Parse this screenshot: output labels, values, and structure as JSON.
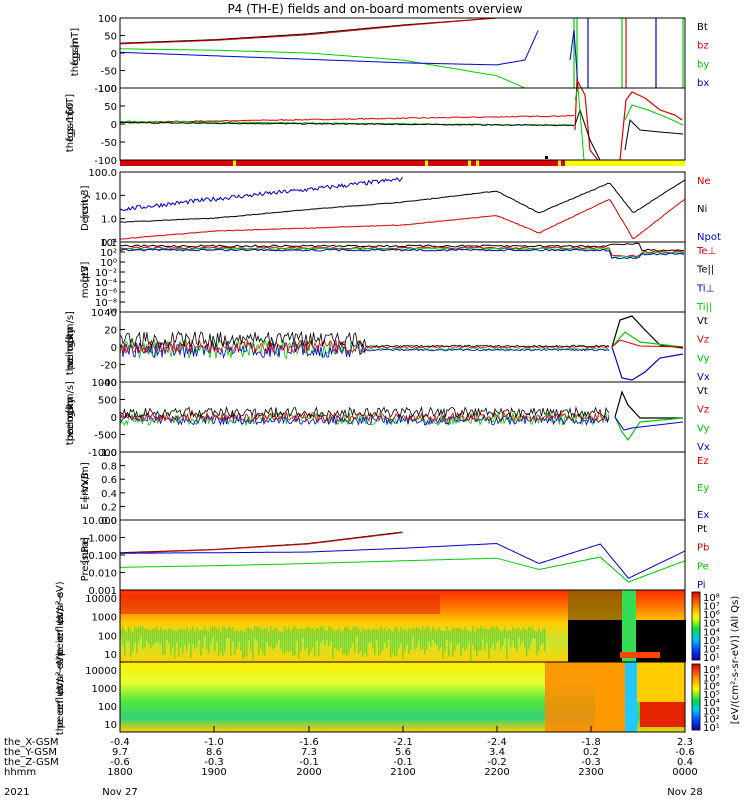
{
  "title": "P4 (TH-E) fields and on-board moments overview",
  "colors": {
    "black": "#000000",
    "red": "#dd0000",
    "green": "#00cc00",
    "blue": "#0000cc",
    "yellow": "#ffff00"
  },
  "panels": [
    {
      "ylabel": [
        "the",
        "fgs",
        "gsm",
        "[nT]"
      ],
      "ticks": [
        "100",
        "50",
        "0",
        "-50",
        "-100"
      ],
      "legend": [
        {
          "t": "Bt",
          "c": "black"
        },
        {
          "t": "bz",
          "c": "red"
        },
        {
          "t": "by",
          "c": "green"
        },
        {
          "t": "bx",
          "c": "blue"
        }
      ]
    },
    {
      "ylabel": [
        "the",
        "fgs",
        "gsm",
        "-160",
        "[nT]"
      ],
      "ticks": [
        "100",
        "50",
        "0",
        "-50",
        "-100"
      ],
      "legend": []
    },
    {
      "ylabel": [
        "Density",
        "[cm-3]"
      ],
      "ticks": [
        "100.0",
        "10.0",
        "1.0",
        "0.1"
      ],
      "legend": [
        {
          "t": "Ne",
          "c": "red"
        },
        {
          "t": "Ni",
          "c": "black"
        },
        {
          "t": "Npot",
          "c": "blue"
        }
      ]
    },
    {
      "ylabel": [
        "moqt3",
        "[eV]"
      ],
      "ticks": [
        "10⁴",
        "10²",
        "10⁰",
        "10⁻²",
        "10⁻⁴",
        "10⁻⁶",
        "10⁻⁸",
        "10⁻¹⁰"
      ],
      "legend": [
        {
          "t": "Te⊥",
          "c": "red"
        },
        {
          "t": "Te||",
          "c": "black"
        },
        {
          "t": "Ti⊥",
          "c": "blue"
        },
        {
          "t": "Ti||",
          "c": "green"
        }
      ]
    },
    {
      "ylabel": [
        "the",
        "peim",
        "velocity",
        "gsm",
        "[km/s]"
      ],
      "ticks": [
        "40",
        "20",
        "0",
        "-20",
        "-40"
      ],
      "legend": [
        {
          "t": "Vt",
          "c": "black"
        },
        {
          "t": "Vz",
          "c": "red"
        },
        {
          "t": "Vy",
          "c": "green"
        },
        {
          "t": "Vx",
          "c": "blue"
        }
      ]
    },
    {
      "ylabel": [
        "the",
        "peem",
        "velocity",
        "gsm",
        "[km/s]"
      ],
      "ticks": [
        "1000",
        "500",
        "0",
        "-500",
        "-1000"
      ],
      "legend": [
        {
          "t": "Vt",
          "c": "black"
        },
        {
          "t": "Vz",
          "c": "red"
        },
        {
          "t": "Vy",
          "c": "green"
        },
        {
          "t": "Vx",
          "c": "blue"
        }
      ]
    },
    {
      "ylabel": [
        "E=-VxB",
        "[mV/m]"
      ],
      "ticks": [
        "1.0",
        "0.8",
        "0.6",
        "0.4",
        "0.2",
        "0.0"
      ],
      "legend": [
        {
          "t": "Ez",
          "c": "red"
        },
        {
          "t": "Ey",
          "c": "green"
        },
        {
          "t": "Ex",
          "c": "blue"
        }
      ]
    },
    {
      "ylabel": [
        "Pressure",
        "[nPa]"
      ],
      "ticks": [
        "10.000",
        "1.000",
        "0.100",
        "0.010",
        "0.001"
      ],
      "legend": [
        {
          "t": "Pt",
          "c": "black"
        },
        {
          "t": "Pb",
          "c": "red"
        },
        {
          "t": "Pe",
          "c": "green"
        },
        {
          "t": "Pi",
          "c": "blue"
        }
      ]
    },
    {
      "ylabel": [
        "the",
        "peir",
        "en",
        "eflux",
        "eV/",
        "(cm²-s-",
        "sr-eV)"
      ],
      "ticks": [
        "10000",
        "1000",
        "100",
        "10"
      ],
      "legend": []
    },
    {
      "ylabel": [
        "the",
        "peer",
        "en",
        "eflux",
        "eV/",
        "(cm²-s-",
        "sr-eV)"
      ],
      "ticks": [
        "10000",
        "1000",
        "100",
        "10"
      ],
      "legend": []
    }
  ],
  "colorbar": {
    "ticks": [
      "10⁸",
      "10⁷",
      "10⁶",
      "10⁵",
      "10⁴",
      "10³",
      "10²",
      "10¹"
    ],
    "label": "[eV/(cm²-s-sr-eV)] (All Qs)"
  },
  "footer": {
    "rows": [
      {
        "label": "the_X-GSM",
        "values": [
          "-0.4",
          "-1.0",
          "-1.6",
          "-2.1",
          "-2.4",
          "-1.8",
          "2.3"
        ]
      },
      {
        "label": "the_Y-GSM",
        "values": [
          "9.7",
          "8.6",
          "7.3",
          "5.6",
          "3.4",
          "0.2",
          "-0.6"
        ]
      },
      {
        "label": "the_Z-GSM",
        "values": [
          "-0.6",
          "-0.3",
          "-0.1",
          "-0.1",
          "-0.2",
          "-0.3",
          "0.4"
        ]
      },
      {
        "label": "hhmm",
        "values": [
          "1800",
          "1900",
          "2000",
          "2100",
          "2200",
          "2300",
          "0000"
        ]
      }
    ],
    "dates": {
      "year": "2021",
      "start": "Nov 27",
      "end": "Nov 28"
    }
  },
  "chart_data": {
    "type": "line",
    "title": "P4 (TH-E) fields and on-board moments overview",
    "x_ticks": [
      "1800",
      "1900",
      "2000",
      "2100",
      "2200",
      "2300",
      "0000"
    ],
    "panels": [
      {
        "name": "the fgs gsm [nT]",
        "ylim": [
          -100,
          100
        ],
        "series": [
          {
            "name": "Bt",
            "x": [
              1800,
              1900,
              2000,
              2100,
              2200,
              2230,
              2250
            ],
            "values": [
              28,
              38,
              55,
              80,
              100,
              100,
              100
            ]
          },
          {
            "name": "bz",
            "x": [
              1800,
              1900,
              2000,
              2100,
              2200,
              2230,
              2250
            ],
            "values": [
              26,
              36,
              52,
              78,
              100,
              100,
              100
            ]
          },
          {
            "name": "by",
            "x": [
              1800,
              1900,
              2000,
              2100,
              2200,
              2230,
              2250
            ],
            "values": [
              12,
              8,
              0,
              -20,
              -65,
              -100,
              -100
            ]
          },
          {
            "name": "bx",
            "x": [
              1800,
              1900,
              2000,
              2100,
              2200,
              2230,
              2250
            ],
            "values": [
              2,
              -8,
              -18,
              -28,
              -34,
              -20,
              100
            ]
          }
        ]
      },
      {
        "name": "Density [cm-3]",
        "ylim": [
          0.05,
          200
        ],
        "log": true,
        "series": [
          {
            "name": "Ni",
            "x": [
              1800,
              1900,
              2000,
              2100,
              2200,
              2245,
              2320,
              2345,
              2400
            ],
            "values": [
              0.7,
              1.1,
              3,
              7,
              25,
              2,
              65,
              2,
              90
            ]
          },
          {
            "name": "Ne",
            "x": [
              1800,
              1900,
              2000,
              2100,
              2200,
              2245,
              2320,
              2345,
              2400
            ],
            "values": [
              0.1,
              0.25,
              0.35,
              0.5,
              1.5,
              0.2,
              10,
              0.1,
              10
            ]
          },
          {
            "name": "Npot",
            "x": [
              1800,
              1900,
              2000,
              2100
            ],
            "values": [
              3,
              10,
              30,
              100
            ]
          }
        ]
      },
      {
        "name": "Pressure [nPa]",
        "ylim": [
          0.001,
          10
        ],
        "log": true,
        "series": [
          {
            "name": "Pt",
            "x": [
              1800,
              1900,
              2000,
              2100
            ],
            "values": [
              0.22,
              0.4,
              1.2,
              10
            ]
          },
          {
            "name": "Pb",
            "x": [
              1800,
              1900,
              2000,
              2100
            ],
            "values": [
              0.2,
              0.38,
              1.1,
              9
            ]
          },
          {
            "name": "Pi",
            "x": [
              1800,
              1900,
              2000,
              2100,
              2200,
              2245,
              2310,
              2340,
              2400
            ],
            "values": [
              0.2,
              0.22,
              0.25,
              0.5,
              1.2,
              0.03,
              1.1,
              0.002,
              0.3
            ]
          },
          {
            "name": "Pe",
            "x": [
              1800,
              1900,
              2000,
              2100,
              2200,
              2245,
              2310,
              2340,
              2400
            ],
            "values": [
              0.015,
              0.02,
              0.03,
              0.05,
              0.08,
              0.01,
              0.1,
              0.001,
              0.05
            ]
          }
        ]
      }
    ]
  }
}
